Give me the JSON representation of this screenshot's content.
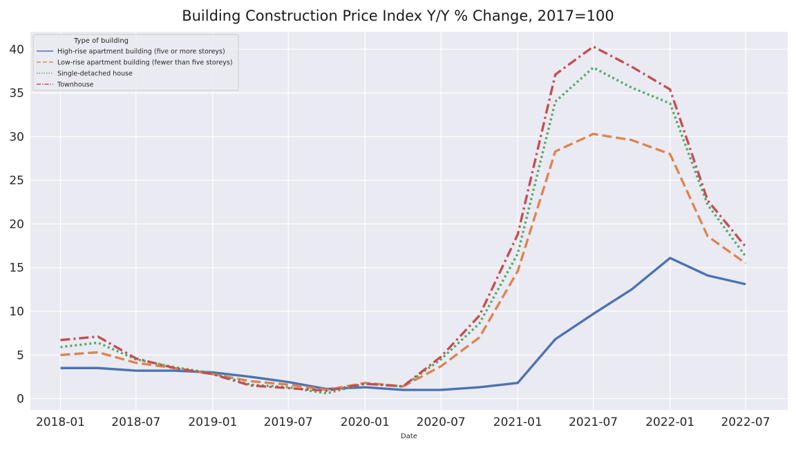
{
  "chart_data": {
    "type": "line",
    "title": "Building Construction Price Index Y/Y % Change, 2017=100",
    "xlabel": "Date",
    "ylabel": "",
    "ylim": [
      -1.3,
      42
    ],
    "xlim": [
      "2017-10-21",
      "2022-10-10"
    ],
    "grid": true,
    "legend": {
      "title": "Type of building",
      "position": "top-left"
    },
    "x": [
      "2018-01",
      "2018-04",
      "2018-07",
      "2018-10",
      "2019-01",
      "2019-04",
      "2019-07",
      "2019-10",
      "2020-01",
      "2020-04",
      "2020-07",
      "2020-10",
      "2021-01",
      "2021-04",
      "2021-07",
      "2021-10",
      "2022-01",
      "2022-04",
      "2022-07"
    ],
    "x_ticks": [
      "2018-01",
      "2018-07",
      "2019-01",
      "2019-07",
      "2020-01",
      "2020-07",
      "2021-01",
      "2021-07",
      "2022-01",
      "2022-07"
    ],
    "y_ticks": [
      0,
      5,
      10,
      15,
      20,
      25,
      30,
      35,
      40
    ],
    "series": [
      {
        "name": "High-rise apartment building (five or more storeys)",
        "color": "#4c72b0",
        "dash": "solid",
        "values": [
          3.5,
          3.5,
          3.2,
          3.2,
          3.0,
          2.5,
          1.9,
          1.1,
          1.3,
          1.0,
          1.0,
          1.3,
          1.8,
          6.8,
          9.7,
          12.5,
          16.1,
          14.1,
          13.1
        ]
      },
      {
        "name": "Low-rise apartment building (fewer than five storeys)",
        "color": "#dd8452",
        "dash": "dashed",
        "values": [
          5.0,
          5.3,
          4.1,
          3.5,
          2.8,
          2.0,
          1.6,
          1.0,
          1.8,
          1.4,
          3.7,
          7.0,
          14.6,
          28.3,
          30.3,
          29.6,
          28.0,
          18.6,
          15.5
        ]
      },
      {
        "name": "Single-detached house",
        "color": "#55a868",
        "dash": "dotted",
        "values": [
          5.9,
          6.4,
          4.5,
          3.6,
          2.9,
          1.6,
          1.3,
          0.6,
          1.7,
          1.4,
          4.5,
          8.6,
          16.6,
          34.0,
          37.9,
          35.6,
          33.8,
          22.2,
          16.3
        ]
      },
      {
        "name": "Townhouse",
        "color": "#c44e52",
        "dash": "dashdot",
        "values": [
          6.7,
          7.1,
          4.6,
          3.5,
          2.8,
          1.5,
          1.2,
          0.9,
          1.7,
          1.4,
          4.8,
          9.5,
          18.8,
          37.1,
          40.3,
          38.0,
          35.4,
          22.7,
          17.4
        ]
      }
    ]
  }
}
